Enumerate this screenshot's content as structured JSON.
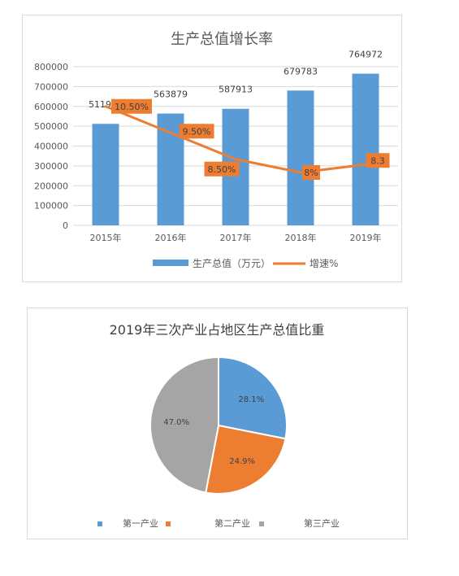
{
  "charts": {
    "combo": {
      "title": "生产总值增长率",
      "legend": {
        "bar_label": "生产总值（万元）",
        "line_label": "增速%"
      }
    },
    "pie": {
      "title": "2019年三次产业占地区生产总值比重"
    }
  },
  "colors": {
    "blue": "#5b9bd5",
    "orange": "#ed7d31",
    "gray": "#a5a5a5"
  },
  "chart_data": [
    {
      "type": "bar",
      "title": "生产总值增长率",
      "categories": [
        "2015年",
        "2016年",
        "2017年",
        "2018年",
        "2019年"
      ],
      "series": [
        {
          "name": "生产总值（万元）",
          "type": "bar",
          "values": [
            511916,
            563879,
            587913,
            679783,
            764972
          ],
          "data_labels": [
            "511916",
            "563879",
            "587913",
            "679783",
            "764972"
          ]
        },
        {
          "name": "增速%",
          "type": "line",
          "values": [
            10.5,
            9.5,
            8.5,
            8.0,
            8.3
          ],
          "data_labels": [
            "10.50%",
            "9.50%",
            "8.50%",
            "8%",
            "8.3"
          ]
        }
      ],
      "y_ticks": [
        "0",
        "100000",
        "200000",
        "300000",
        "400000",
        "500000",
        "600000",
        "700000",
        "800000"
      ],
      "ylim": [
        0,
        800000
      ],
      "grid": true,
      "legend": "bottom"
    },
    {
      "type": "pie",
      "title": "2019年三次产业占地区生产总值比重",
      "labels": [
        "第一产业",
        "第二产业",
        "第三产业"
      ],
      "values": [
        28.1,
        24.9,
        47.0
      ],
      "data_labels": [
        "28.1%",
        "24.9%",
        "47.0%"
      ],
      "legend": "bottom"
    }
  ]
}
